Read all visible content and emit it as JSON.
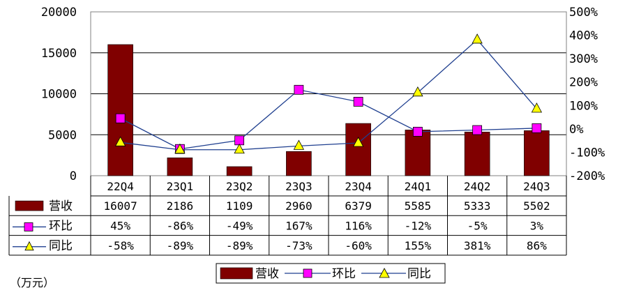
{
  "unit_label": "（万元）",
  "chart_data": {
    "type": "bar",
    "categories": [
      "22Q4",
      "23Q1",
      "23Q2",
      "23Q3",
      "23Q4",
      "24Q1",
      "24Q2",
      "24Q3"
    ],
    "series": [
      {
        "name": "营收",
        "kind": "bar",
        "axis": "left",
        "color": "#800000",
        "values": [
          16007,
          2186,
          1109,
          2960,
          6379,
          5585,
          5333,
          5502
        ],
        "display": [
          "16007",
          "2186",
          "1109",
          "2960",
          "6379",
          "5585",
          "5333",
          "5502"
        ]
      },
      {
        "name": "环比",
        "kind": "line",
        "axis": "right",
        "marker": "square",
        "color": "#ff00ff",
        "line_color": "#1f3f8f",
        "values": [
          45,
          -86,
          -49,
          167,
          116,
          -12,
          -5,
          3
        ],
        "display": [
          "45%",
          "-86%",
          "-49%",
          "167%",
          "116%",
          "-12%",
          "-5%",
          "3%"
        ]
      },
      {
        "name": "同比",
        "kind": "line",
        "axis": "right",
        "marker": "triangle",
        "color": "#ffff00",
        "line_color": "#1f3f8f",
        "values": [
          -58,
          -89,
          -89,
          -73,
          -60,
          155,
          381,
          86
        ],
        "display": [
          "-58%",
          "-89%",
          "-89%",
          "-73%",
          "-60%",
          "155%",
          "381%",
          "86%"
        ]
      }
    ],
    "left_axis": {
      "ylim": [
        0,
        20000
      ],
      "ticks": [
        0,
        5000,
        10000,
        15000,
        20000
      ],
      "tick_labels": [
        "0",
        "5000",
        "10000",
        "15000",
        "20000"
      ]
    },
    "right_axis": {
      "ylim": [
        -200,
        500
      ],
      "ticks": [
        -200,
        -100,
        0,
        100,
        200,
        300,
        400,
        500
      ],
      "tick_labels": [
        "-200%",
        "-100%",
        "0%",
        "100%",
        "200%",
        "300%",
        "400%",
        "500%"
      ]
    },
    "grid": "horizontal",
    "data_table": true,
    "legend_position": "bottom"
  }
}
